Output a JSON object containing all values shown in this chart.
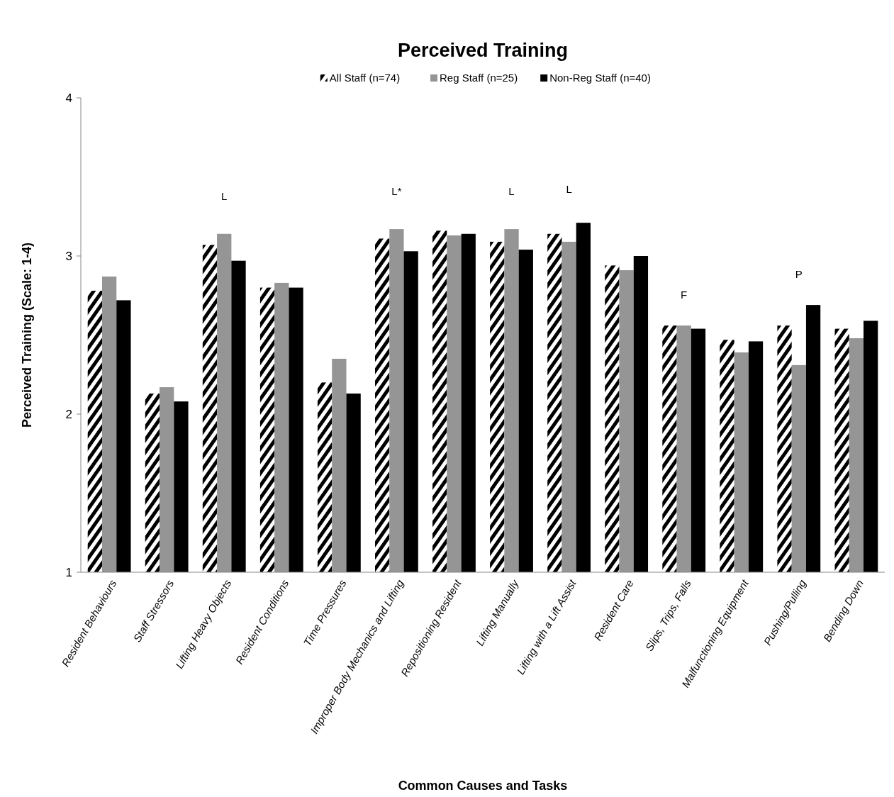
{
  "chart_data": {
    "type": "bar",
    "title": "Perceived Training",
    "xlabel": "Common Causes and Tasks",
    "ylabel": "Perceived Training (Scale: 1-4)",
    "categories": [
      "Resident Behaviours",
      "Staff Stressors",
      "Lifting Heavy Objects",
      "Resident Conditions",
      "Time Pressures",
      "Improper Body Mechanics and Lifting",
      "Repositioning Resident",
      "Lifting Manually",
      "Lifting with a Lift Assist",
      "Resident Care",
      "Slips, Trips, Falls",
      "Malfunctioning Equipment",
      "Pushing/Pulling",
      "Bending Down"
    ],
    "series": [
      {
        "name": "All Staff (n=74)",
        "color": "#000000",
        "values": [
          2.78,
          2.13,
          3.07,
          2.8,
          2.2,
          3.11,
          3.16,
          3.09,
          3.14,
          2.94,
          2.56,
          2.47,
          2.56,
          2.54
        ]
      },
      {
        "name": "Reg Staff (n=25)",
        "color": "#959595",
        "values": [
          2.87,
          2.17,
          3.14,
          2.83,
          2.35,
          3.17,
          3.13,
          3.17,
          3.09,
          2.91,
          2.56,
          2.39,
          2.31,
          2.48
        ]
      },
      {
        "name": "Non-Reg Staff (n=40)",
        "color": "#000000",
        "values": [
          2.72,
          2.08,
          2.97,
          2.8,
          2.13,
          3.03,
          3.14,
          3.04,
          3.21,
          3.0,
          2.54,
          2.46,
          2.69,
          2.59
        ]
      }
    ],
    "ylim": [
      1,
      4
    ],
    "yticks": [
      1,
      2,
      3,
      4
    ],
    "grid": false,
    "legend": "top",
    "annotations": [
      "L",
      "L*",
      "L",
      "L",
      "F",
      "P"
    ]
  }
}
